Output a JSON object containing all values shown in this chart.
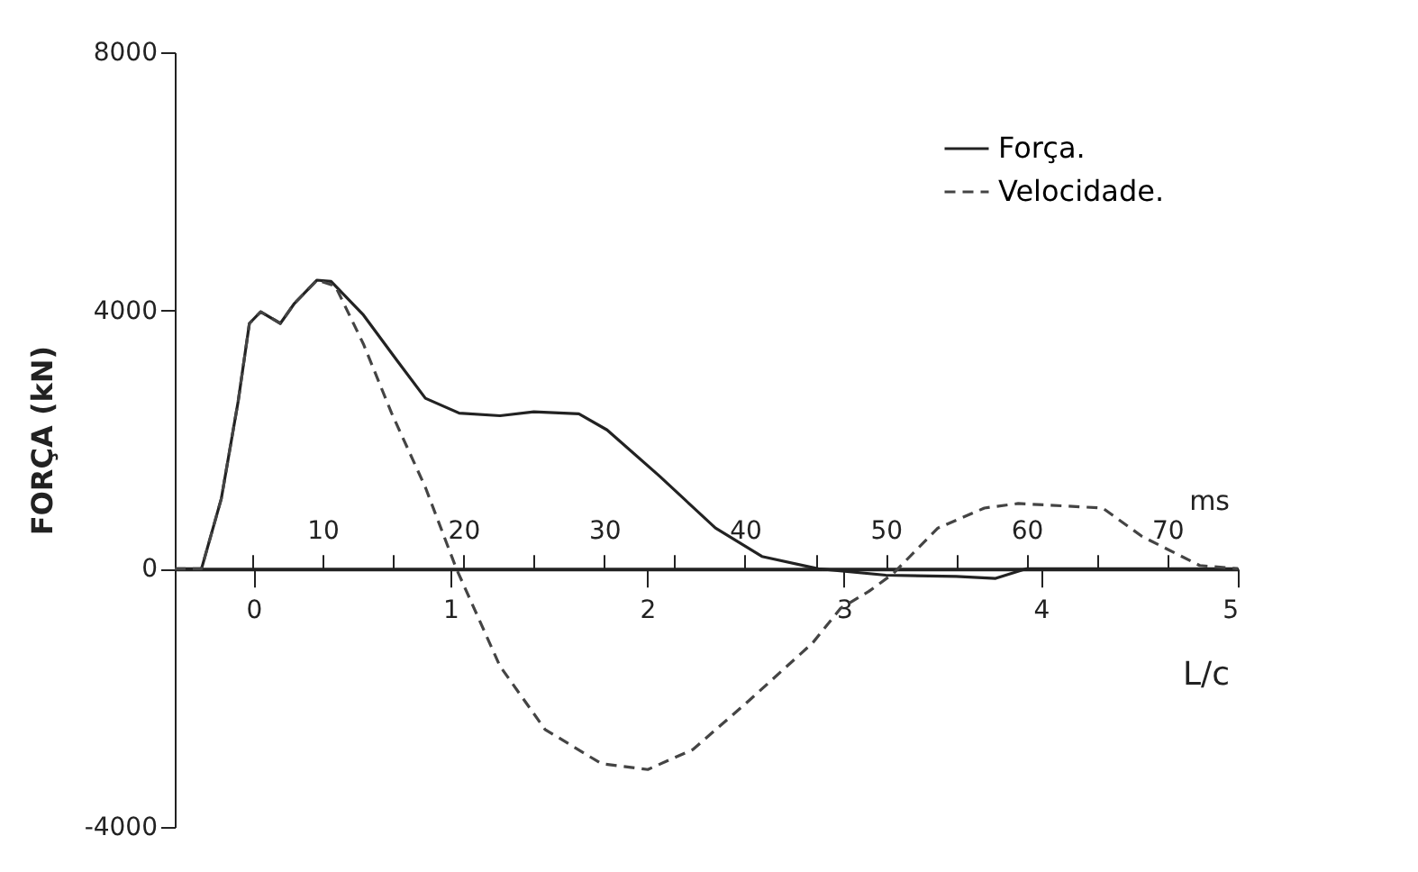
{
  "chart_data": {
    "type": "line",
    "ylabel": "FORÇA (kN)",
    "xlabel": "ms",
    "x2label": "L/c",
    "xlim": [
      -0.5,
      75
    ],
    "xticks": [
      {
        "value": 5,
        "label": null
      },
      10,
      {
        "value": 15,
        "label": null
      },
      20,
      {
        "value": 25,
        "label": null
      },
      30,
      {
        "value": 35,
        "label": null
      },
      40,
      {
        "value": 45,
        "label": null
      },
      50,
      {
        "value": 55,
        "label": null
      },
      60,
      {
        "value": 65,
        "label": null
      },
      70
    ],
    "x2lim": [
      -0.4,
      5
    ],
    "x2ticks": [
      0,
      1,
      2,
      3,
      4,
      5
    ],
    "ylim": [
      -4000,
      8000
    ],
    "yticks": [
      8000,
      4000,
      0,
      -4000
    ],
    "grid": false,
    "legend": "top right",
    "marker": "none",
    "series": [
      {
        "name": "Força.",
        "color": "#222222",
        "line_style": "solid",
        "x": [
          -0.5,
          1.4,
          2.8,
          4.0,
          4.8,
          5.6,
          7.0,
          8.0,
          9.6,
          10.6,
          12.9,
          15.3,
          17.3,
          19.7,
          22.6,
          25.0,
          28.2,
          30.2,
          33.9,
          37.9,
          41.2,
          45.2,
          50,
          55,
          57.8,
          60,
          75
        ],
        "values": [
          0,
          0,
          1080,
          2590,
          3800,
          3980,
          3800,
          4110,
          4470,
          4450,
          3930,
          3220,
          2640,
          2410,
          2370,
          2430,
          2400,
          2150,
          1440,
          630,
          190,
          0,
          -100,
          -120,
          -150,
          0,
          0
        ]
      },
      {
        "name": "Velocidade.",
        "color": "#444444",
        "line_style": "dashed",
        "x": [
          -0.5,
          1.4,
          2.8,
          4.0,
          4.8,
          5.6,
          7.0,
          8.0,
          9.6,
          10.9,
          12.9,
          14.9,
          17.3,
          19.5,
          22.6,
          25.8,
          29.8,
          33.1,
          36.3,
          40.3,
          44.8,
          46.8,
          48.8,
          50.5,
          53.7,
          57,
          59.4,
          65.4,
          68.2,
          72.3,
          75
        ],
        "values": [
          0,
          0,
          1080,
          2590,
          3800,
          3980,
          3800,
          4110,
          4470,
          4380,
          3480,
          2410,
          1260,
          0,
          -1510,
          -2490,
          -3020,
          -3110,
          -2800,
          -2040,
          -1150,
          -610,
          -350,
          -80,
          630,
          940,
          1010,
          940,
          500,
          50,
          0
        ]
      }
    ]
  }
}
